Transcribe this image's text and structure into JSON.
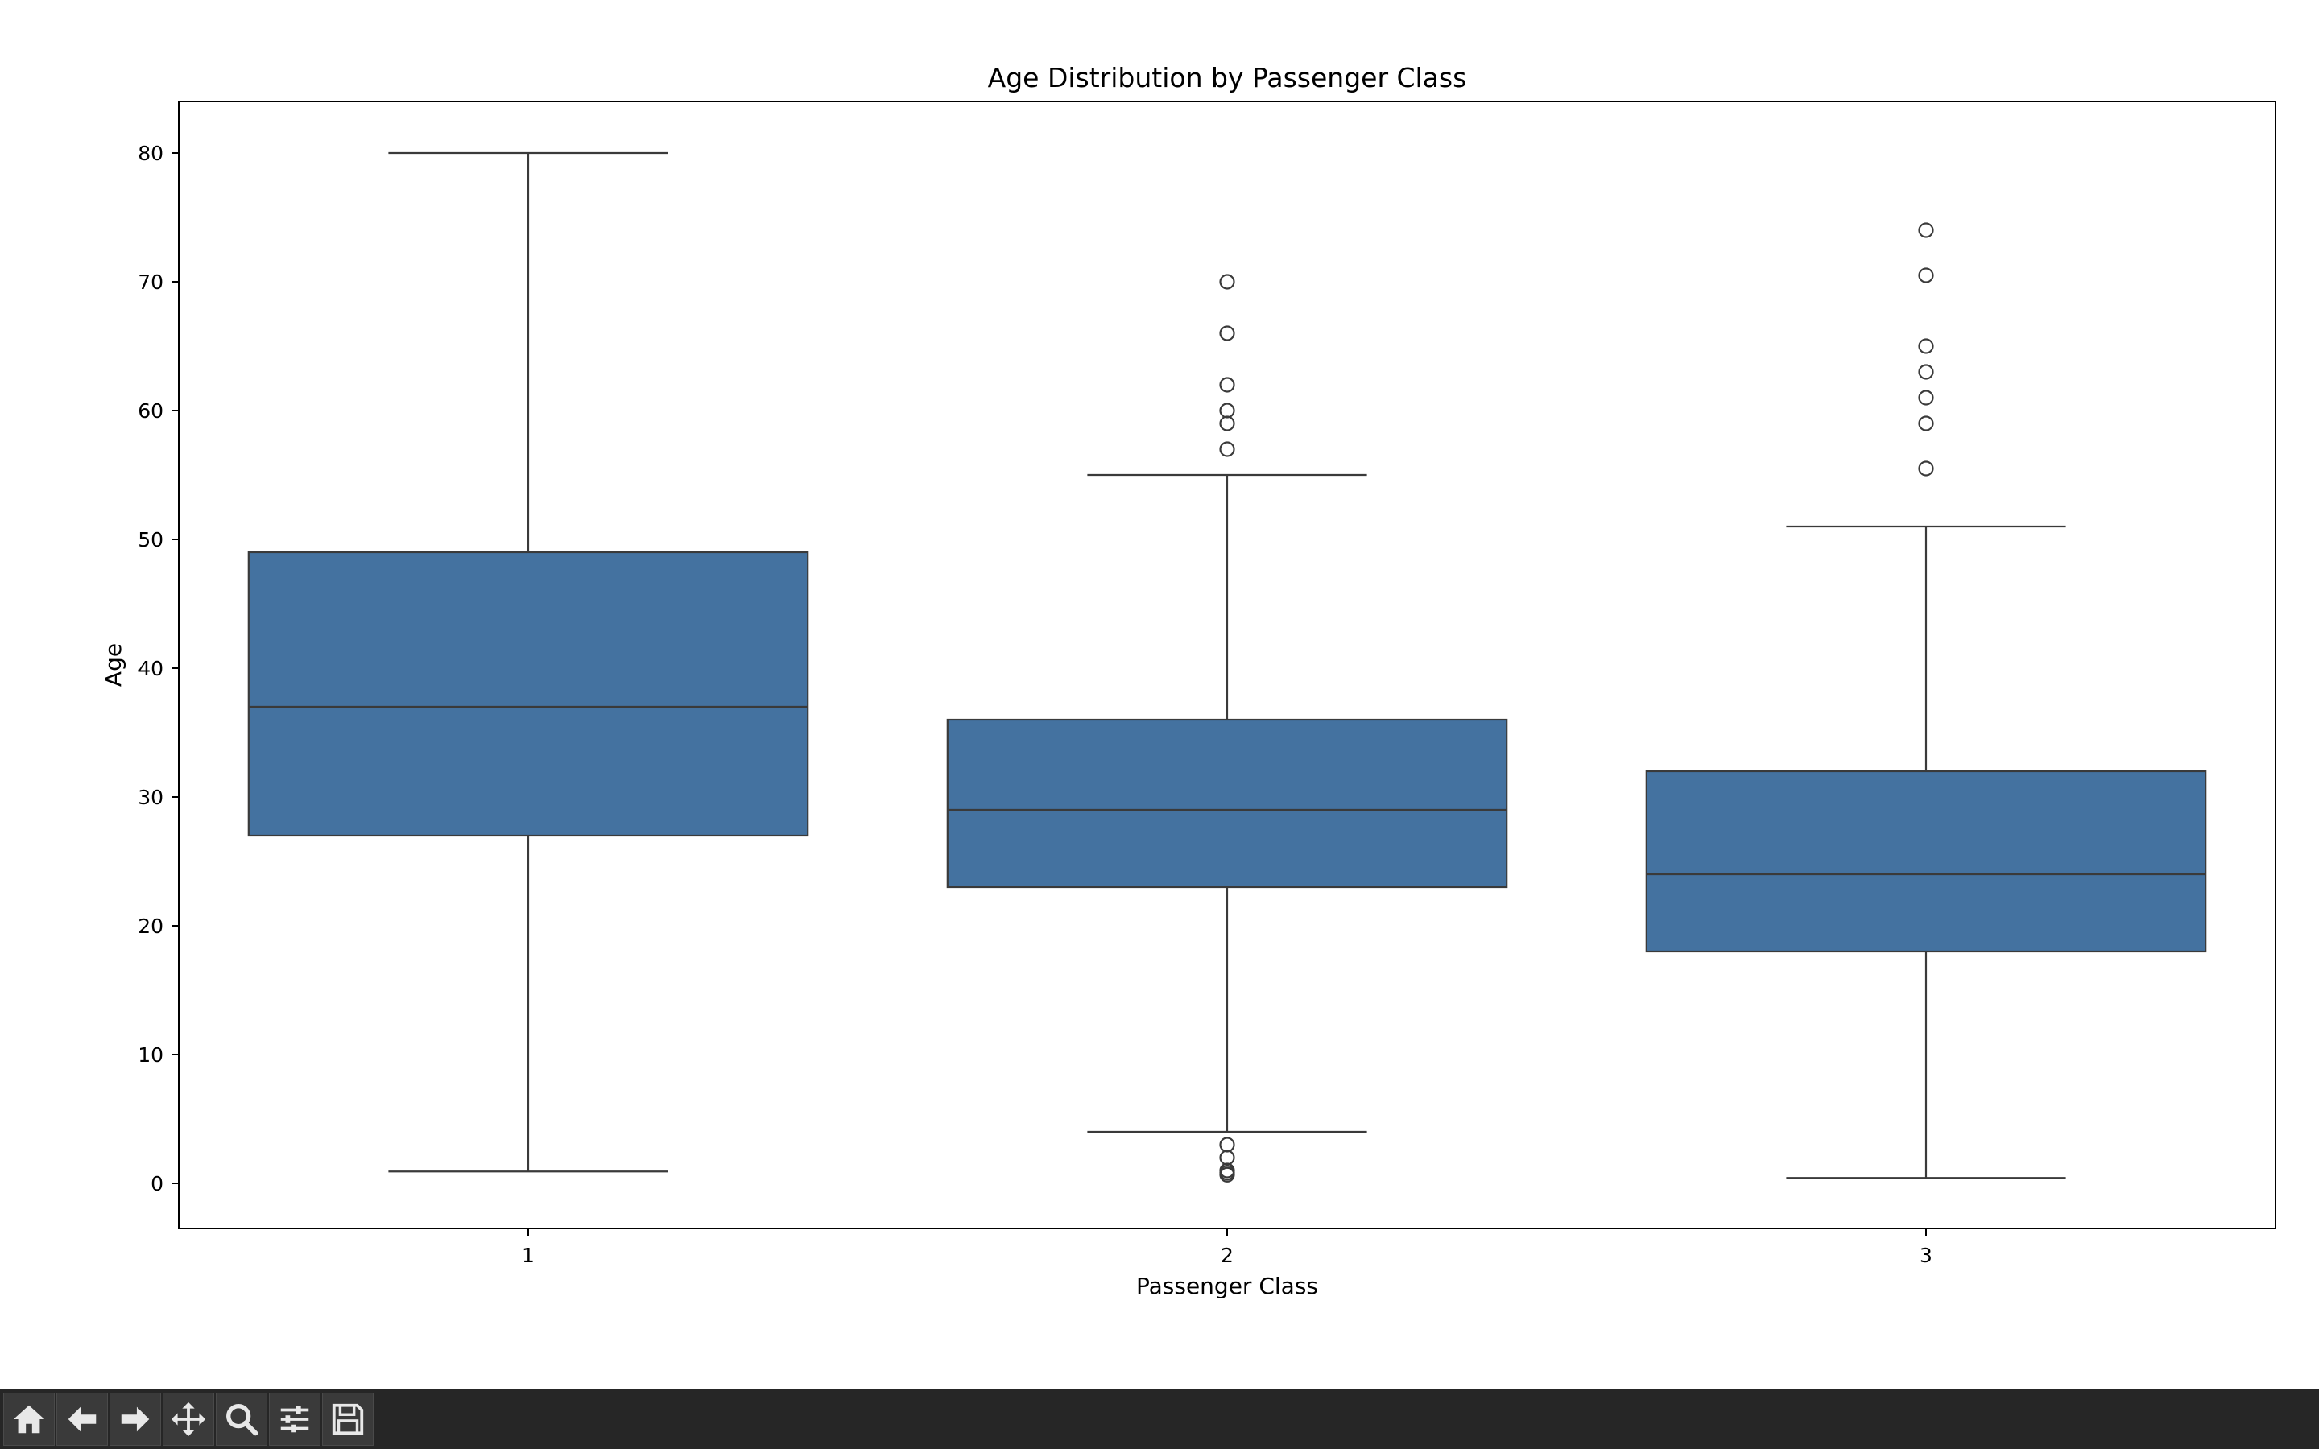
{
  "chart_data": {
    "type": "boxplot",
    "title": "Age Distribution by Passenger Class",
    "xlabel": "Passenger Class",
    "ylabel": "Age",
    "categories": [
      "1",
      "2",
      "3"
    ],
    "ylim": [
      -3.5,
      84
    ],
    "yticks": [
      0,
      10,
      20,
      30,
      40,
      50,
      60,
      70,
      80
    ],
    "box_color": "#4472a0",
    "line_color": "#3a3a3a",
    "boxes": [
      {
        "category": "1",
        "whisker_low": 0.92,
        "q1": 27,
        "median": 37,
        "q3": 49,
        "whisker_high": 80,
        "outliers": []
      },
      {
        "category": "2",
        "whisker_low": 4,
        "q1": 23,
        "median": 29,
        "q3": 36,
        "whisker_high": 55,
        "outliers": [
          0.67,
          0.83,
          1,
          2,
          3,
          57,
          59,
          60,
          62,
          66,
          70
        ]
      },
      {
        "category": "3",
        "whisker_low": 0.42,
        "q1": 18,
        "median": 24,
        "q3": 32,
        "whisker_high": 51,
        "outliers": [
          55.5,
          59,
          61,
          63,
          65,
          70.5,
          74
        ]
      }
    ]
  },
  "toolbar": {
    "buttons": [
      {
        "name": "home-button",
        "icon": "home-icon"
      },
      {
        "name": "back-button",
        "icon": "arrow-left-icon"
      },
      {
        "name": "forward-button",
        "icon": "arrow-right-icon"
      },
      {
        "name": "pan-button",
        "icon": "move-icon"
      },
      {
        "name": "zoom-button",
        "icon": "magnifier-icon"
      },
      {
        "name": "configure-subplots-button",
        "icon": "sliders-icon"
      },
      {
        "name": "save-button",
        "icon": "floppy-disk-icon"
      }
    ]
  }
}
